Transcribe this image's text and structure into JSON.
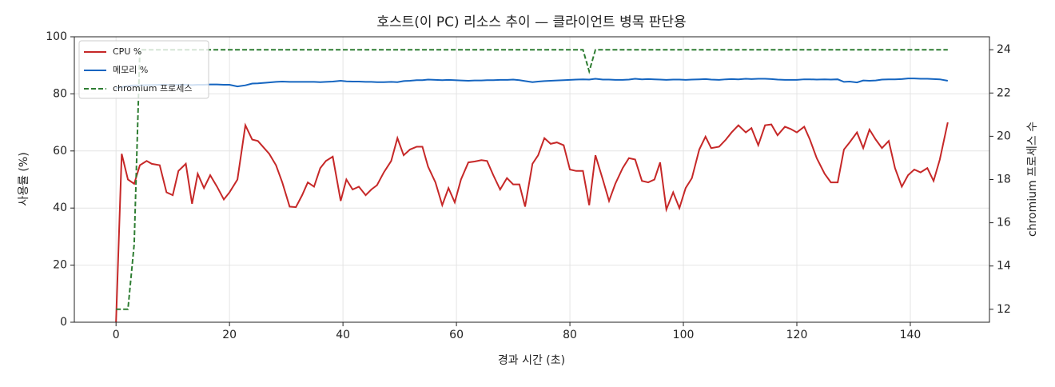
{
  "chart_data": {
    "type": "line",
    "title": "호스트(이 PC) 리소스 추이 — 클라이언트 병목 판단용",
    "xlabel": "경과 시간 (초)",
    "ylabel": "사용률 (%)",
    "y2label": "chromium 프로세스 수",
    "x": [
      0,
      1,
      2.1,
      3.2,
      4.2,
      5.4,
      6.3,
      7.7,
      8.9,
      10,
      11,
      12.3,
      13.4,
      14.4,
      15.5,
      16.6,
      17.8,
      19,
      20,
      21.4,
      22.8,
      24,
      25,
      27,
      28.2,
      29.3,
      30.6,
      31.7,
      32.8,
      33.8,
      34.9,
      36,
      37,
      38.2,
      39.6,
      40.6,
      41.7,
      42.8,
      44,
      45,
      46,
      47.2,
      48.5,
      49.6,
      50.7,
      51.8,
      53,
      54,
      55,
      56.3,
      57.5,
      58.6,
      59.7,
      60.8,
      62.1,
      63.2,
      64.4,
      65.4,
      66.5,
      67.7,
      68.9,
      70,
      71.1,
      72.1,
      73.4,
      74.4,
      75.5,
      76.6,
      77.7,
      78.9,
      80,
      81.1,
      82.3,
      83.4,
      84.5,
      85.8,
      86.9,
      88,
      89.3,
      90.4,
      91.5,
      92.7,
      93.8,
      94.9,
      95.9,
      97,
      98.2,
      99.3,
      100.4,
      101.5,
      102.8,
      103.9,
      104.9,
      106.3,
      107.5,
      108.5,
      109.7,
      111,
      112,
      113.2,
      114.4,
      115.5,
      116.6,
      117.9,
      118.9,
      120,
      121.3,
      122.3,
      123.5,
      124.9,
      126,
      127.2,
      128.3,
      129.3,
      130.6,
      131.7,
      132.8,
      133.9,
      135,
      136.2,
      137.3,
      138.5,
      139.6,
      140.7,
      141.8,
      143,
      144.1,
      145.2,
      146.6
    ],
    "series": [
      {
        "name": "CPU %",
        "color": "#c62828",
        "linestyle": "solid",
        "axis": "y",
        "values": [
          0,
          59,
          50,
          48.5,
          55,
          56.5,
          55.5,
          55,
          45.5,
          44.5,
          53,
          55.5,
          41.5,
          52,
          47,
          51.5,
          47.5,
          43,
          45.5,
          50,
          69,
          64,
          63.5,
          59,
          55,
          49,
          40.5,
          40.3,
          44.5,
          49,
          47.5,
          54,
          56.5,
          58,
          42.5,
          50,
          46.5,
          47.5,
          44.5,
          46.5,
          48,
          52.5,
          56.5,
          64.5,
          58.5,
          60.5,
          61.5,
          61.5,
          54.5,
          49,
          41,
          47,
          42,
          50,
          56,
          56.3,
          56.8,
          56.5,
          51.5,
          46.5,
          50.5,
          48.3,
          48.3,
          40.5,
          55.5,
          58.5,
          64.5,
          62.5,
          63,
          62,
          53.5,
          53,
          53,
          41,
          58.5,
          50,
          42.5,
          48.5,
          54,
          57.5,
          57,
          49.5,
          49,
          50,
          56,
          39.5,
          45.5,
          40,
          47,
          50.5,
          60.5,
          65,
          61,
          61.5,
          64,
          66.5,
          69,
          66.5,
          68,
          62,
          69,
          69.3,
          65.5,
          68.5,
          67.7,
          66.5,
          68.5,
          64,
          57.5,
          52,
          49,
          49,
          60.5,
          63,
          66.5,
          61,
          67.5,
          64,
          61,
          63.5,
          54,
          47.5,
          51.5,
          53.5,
          52.5,
          54,
          49.5,
          57,
          70
        ]
      },
      {
        "name": "메모리 %",
        "color": "#1565c0",
        "linestyle": "solid",
        "axis": "y",
        "values": [
          82,
          82.4,
          82.8,
          83,
          83,
          83.1,
          83.1,
          83.2,
          83.2,
          83.1,
          83.2,
          83.2,
          83.1,
          83.2,
          83.2,
          83.3,
          83.3,
          83.2,
          83.2,
          82.6,
          83,
          83.6,
          83.7,
          84,
          84.2,
          84.3,
          84.2,
          84.2,
          84.2,
          84.2,
          84.2,
          84.1,
          84.2,
          84.3,
          84.6,
          84.4,
          84.3,
          84.3,
          84.2,
          84.2,
          84.1,
          84.1,
          84.2,
          84.1,
          84.5,
          84.6,
          84.8,
          84.8,
          85,
          84.9,
          84.8,
          84.9,
          84.8,
          84.7,
          84.6,
          84.7,
          84.7,
          84.8,
          84.8,
          84.9,
          84.9,
          85,
          84.8,
          84.5,
          84.1,
          84.3,
          84.5,
          84.6,
          84.7,
          84.8,
          84.9,
          85,
          85.1,
          85,
          85.3,
          85,
          85,
          84.9,
          84.9,
          85,
          85.3,
          85.1,
          85.2,
          85.1,
          85,
          84.9,
          85,
          85,
          84.9,
          85,
          85.1,
          85.2,
          85,
          84.9,
          85.1,
          85.2,
          85.1,
          85.3,
          85.2,
          85.3,
          85.3,
          85.2,
          85,
          84.9,
          84.9,
          84.9,
          85.1,
          85.1,
          85,
          85.1,
          85,
          85.1,
          84.2,
          84.3,
          84,
          84.7,
          84.6,
          84.7,
          85,
          85.1,
          85.1,
          85.2,
          85.4,
          85.4,
          85.3,
          85.3,
          85.2,
          85.1,
          84.6
        ]
      },
      {
        "name": "chromium 프로세스",
        "color": "#2e7d32",
        "linestyle": "dashed",
        "axis": "y2",
        "values": [
          12,
          12,
          12,
          15,
          24,
          24,
          24,
          24,
          24,
          24,
          24,
          24,
          24,
          24,
          24,
          24,
          24,
          24,
          24,
          24,
          24,
          24,
          24,
          24,
          24,
          24,
          24,
          24,
          24,
          24,
          24,
          24,
          24,
          24,
          24,
          24,
          24,
          24,
          24,
          24,
          24,
          24,
          24,
          24,
          24,
          24,
          24,
          24,
          24,
          24,
          24,
          24,
          24,
          24,
          24,
          24,
          24,
          24,
          24,
          24,
          24,
          24,
          24,
          24,
          24,
          24,
          24,
          24,
          24,
          24,
          24,
          24,
          24,
          23,
          24,
          24,
          24,
          24,
          24,
          24,
          24,
          24,
          24,
          24,
          24,
          24,
          24,
          24,
          24,
          24,
          24,
          24,
          24,
          24,
          24,
          24,
          24,
          24,
          24,
          24,
          24,
          24,
          24,
          24,
          24,
          24,
          24,
          24,
          24,
          24,
          24,
          24,
          24,
          24,
          24,
          24,
          24,
          24,
          24,
          24,
          24,
          24,
          24,
          24,
          24,
          24,
          24,
          24,
          24
        ]
      }
    ],
    "xlim": [
      -7.35,
      153.95
    ],
    "ylim": [
      0,
      100
    ],
    "y2lim": [
      11.4,
      24.6
    ],
    "xticks": [
      0,
      20,
      40,
      60,
      80,
      100,
      120,
      140
    ],
    "yticks": [
      0,
      20,
      40,
      60,
      80,
      100
    ],
    "y2ticks": [
      12,
      14,
      16,
      18,
      20,
      22,
      24
    ],
    "grid": true,
    "legend": "upper-left"
  }
}
